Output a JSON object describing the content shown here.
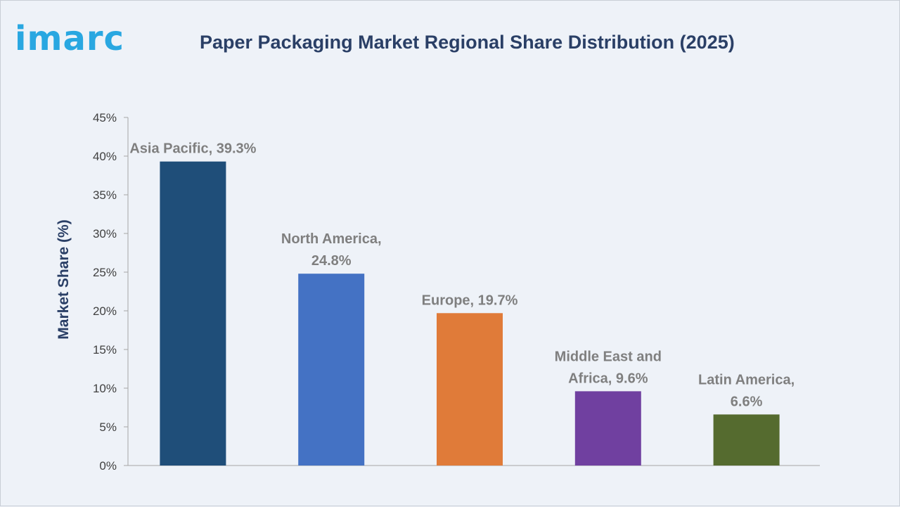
{
  "brand": {
    "logo_text": "imarc"
  },
  "header": {
    "title": "Paper Packaging Market Regional Share Distribution (2025)"
  },
  "chart_data": {
    "type": "bar",
    "title": "Paper Packaging Market Regional Share Distribution (2025)",
    "xlabel": "",
    "ylabel": "Market Share (%)",
    "ylim": [
      0,
      45
    ],
    "yticks": [
      "0%",
      "5%",
      "10%",
      "15%",
      "20%",
      "25%",
      "30%",
      "35%",
      "40%",
      "45%"
    ],
    "categories": [
      "Asia Pacific",
      "North America",
      "Europe",
      "Middle East and Africa",
      "Latin America"
    ],
    "values": [
      39.3,
      24.8,
      19.7,
      9.6,
      6.6
    ],
    "data_labels": [
      [
        "Asia Pacific, 39.3%"
      ],
      [
        "North America,",
        "24.8%"
      ],
      [
        "Europe, 19.7%"
      ],
      [
        "Middle East and",
        "Africa, 9.6%"
      ],
      [
        "Latin America,",
        "6.6%"
      ]
    ],
    "colors": [
      "#1f4e79",
      "#4472c4",
      "#e07b39",
      "#7040a0",
      "#556b2f"
    ],
    "grid": false,
    "legend": "none"
  }
}
